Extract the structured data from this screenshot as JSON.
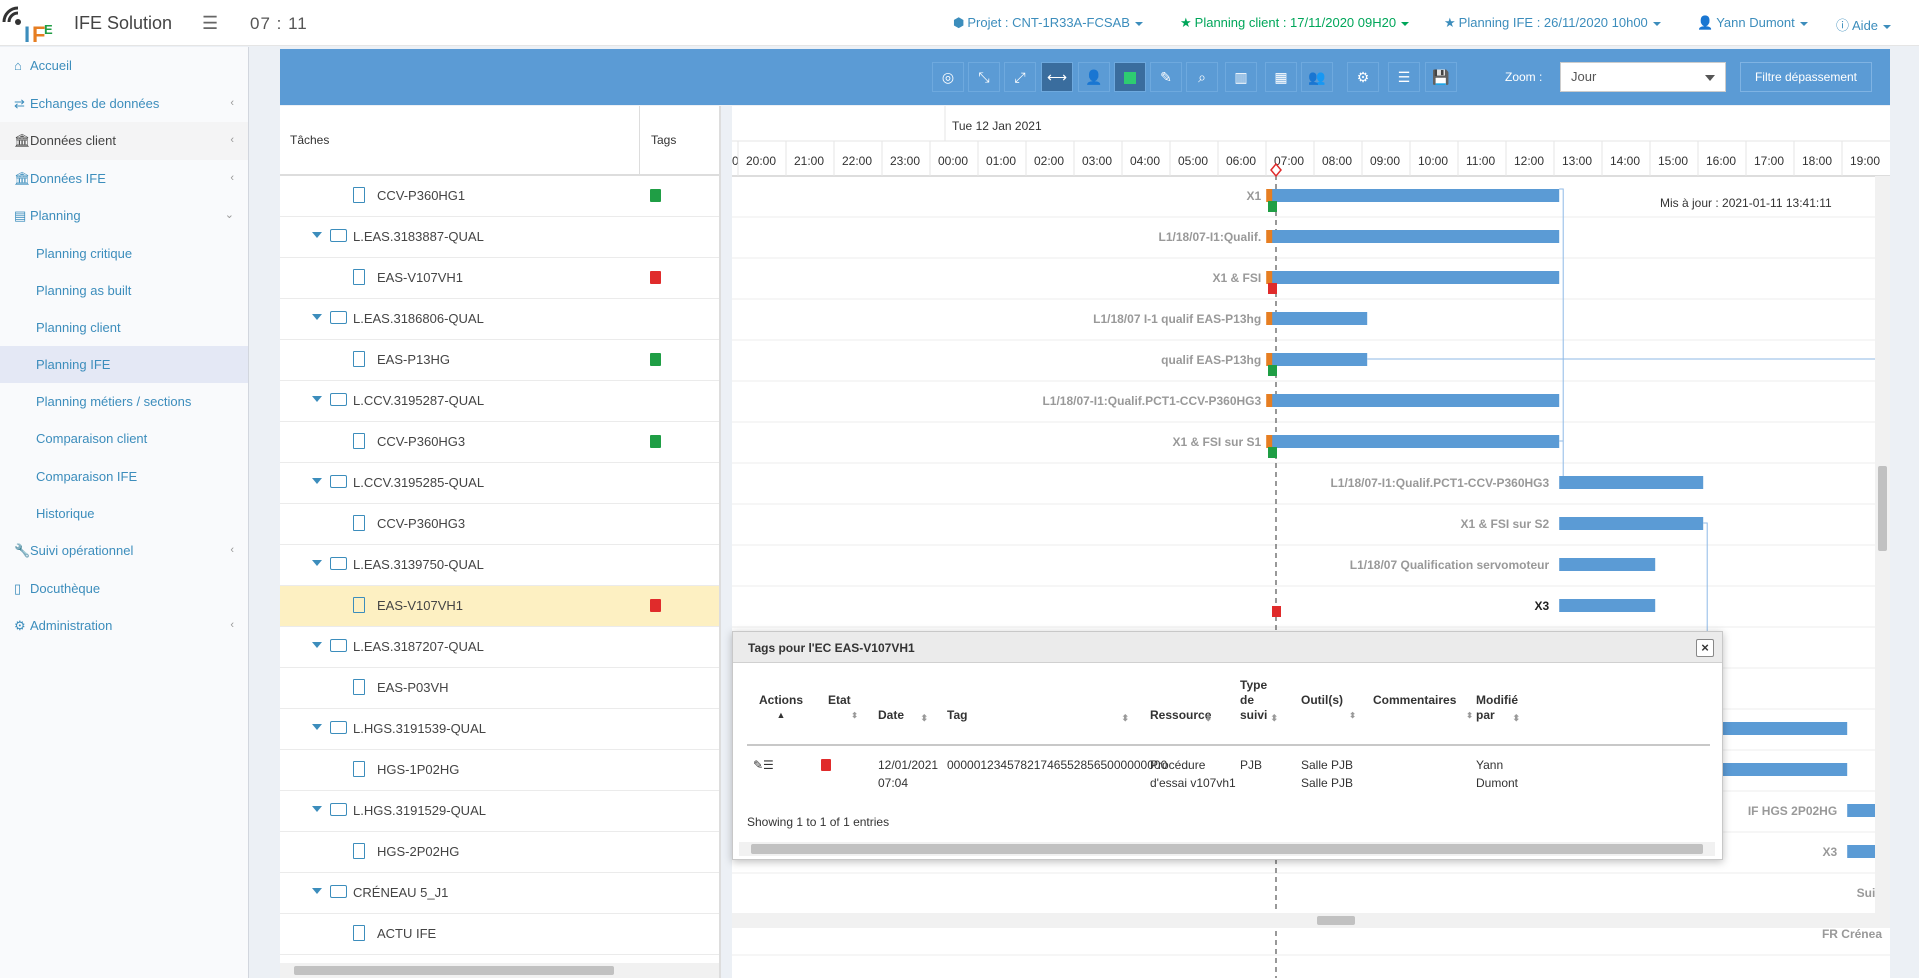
{
  "app": {
    "title": "IFE Solution",
    "clock": "07 : 11"
  },
  "topnav": {
    "projet": "Projet : CNT-1R33A-FCSAB",
    "planning_client": "Planning client : 17/11/2020 09H20",
    "planning_ife": "Planning IFE : 26/11/2020 10h00",
    "user": "Yann Dumont",
    "aide": "Aide"
  },
  "sidebar": {
    "items": [
      {
        "label": "Accueil",
        "icon": "home-icon"
      },
      {
        "label": "Echanges de données",
        "icon": "exchange-icon"
      },
      {
        "label": "Données client",
        "icon": "bank-icon"
      },
      {
        "label": "Données IFE",
        "icon": "bank-icon"
      },
      {
        "label": "Planning",
        "icon": "calendar-list-icon"
      }
    ],
    "planning_sub": [
      "Planning critique",
      "Planning as built",
      "Planning client",
      "Planning IFE",
      "Planning métiers / sections",
      "Comparaison client",
      "Comparaison IFE",
      "Historique"
    ],
    "items2": [
      {
        "label": "Suivi opérationnel",
        "icon": "wrench-icon"
      },
      {
        "label": "Docuthèque",
        "icon": "document-icon"
      },
      {
        "label": "Administration",
        "icon": "gear-icon"
      }
    ]
  },
  "toolbar": {
    "zoom_label": "Zoom :",
    "zoom_value": "Jour",
    "filtre_label": "Filtre dépassement",
    "icons": [
      "target-icon",
      "collapse-icon",
      "expand-icon",
      "fit-width-icon",
      "user-icon",
      "color-square-icon",
      "marker-icon",
      "search-icon",
      "bar-chart-icon",
      "calendar-x-icon",
      "group-icon",
      "cogs-icon",
      "list-icon",
      "save-icon"
    ]
  },
  "grid": {
    "headers": {
      "tasks": "Tâches",
      "tags": "Tags"
    },
    "rows": [
      {
        "label": "CCV-P360HG1",
        "type": "file",
        "tag": "green"
      },
      {
        "label": "L.EAS.3183887-QUAL",
        "type": "folder",
        "tag": ""
      },
      {
        "label": "EAS-V107VH1",
        "type": "file",
        "tag": "red"
      },
      {
        "label": "L.EAS.3186806-QUAL",
        "type": "folder",
        "tag": ""
      },
      {
        "label": "EAS-P13HG",
        "type": "file",
        "tag": "green"
      },
      {
        "label": "L.CCV.3195287-QUAL",
        "type": "folder",
        "tag": ""
      },
      {
        "label": "CCV-P360HG3",
        "type": "file",
        "tag": "green"
      },
      {
        "label": "L.CCV.3195285-QUAL",
        "type": "folder",
        "tag": ""
      },
      {
        "label": "CCV-P360HG3",
        "type": "file",
        "tag": ""
      },
      {
        "label": "L.EAS.3139750-QUAL",
        "type": "folder",
        "tag": ""
      },
      {
        "label": "EAS-V107VH1",
        "type": "file",
        "tag": "red",
        "selected": true
      },
      {
        "label": "L.EAS.3187207-QUAL",
        "type": "folder",
        "tag": ""
      },
      {
        "label": "EAS-P03VH",
        "type": "file",
        "tag": ""
      },
      {
        "label": "L.HGS.3191539-QUAL",
        "type": "folder",
        "tag": ""
      },
      {
        "label": "HGS-1P02HG",
        "type": "file",
        "tag": ""
      },
      {
        "label": "L.HGS.3191529-QUAL",
        "type": "folder",
        "tag": ""
      },
      {
        "label": "HGS-2P02HG",
        "type": "file",
        "tag": ""
      },
      {
        "label": "CRÉNEAU 5_J1",
        "type": "folder",
        "tag": ""
      },
      {
        "label": "ACTU IFE",
        "type": "file",
        "tag": ""
      }
    ]
  },
  "gantt": {
    "date_label": "Tue 12 Jan 2021",
    "hours": [
      "0",
      "20:00",
      "21:00",
      "22:00",
      "23:00",
      "00:00",
      "01:00",
      "02:00",
      "03:00",
      "04:00",
      "05:00",
      "06:00",
      "07:00",
      "08:00",
      "09:00",
      "10:00",
      "11:00",
      "12:00",
      "13:00",
      "14:00",
      "15:00",
      "16:00",
      "17:00",
      "18:00",
      "19:00"
    ],
    "updated": "Mis à jour : 2021-01-11 13:41:11",
    "bar_labels": [
      "X1",
      "L1/18/07-I1:Qualif.",
      "X1 & FSI",
      "L1/18/07 I-1 qualif EAS-P13hg",
      "qualif EAS-P13hg",
      "L1/18/07-I1:Qualif.PCT1-CCV-P360HG3",
      "X1 & FSI sur S1",
      "L1/18/07-I1:Qualif.PCT1-CCV-P360HG3",
      "X1 & FSI sur S2",
      "L1/18/07 Qualification servomoteur",
      "X3",
      "IF HGS 2P02HG",
      "X3",
      "Suiv",
      "FR Crénea"
    ]
  },
  "dialog": {
    "title": "Tags pour l'EC EAS-V107VH1",
    "close": "×",
    "headers": {
      "actions": "Actions",
      "etat": "Etat",
      "date": "Date",
      "tag": "Tag",
      "ressource": "Ressource",
      "type_suivi": "Type de suivi",
      "outils": "Outil(s)",
      "commentaires": "Commentaires",
      "modifie_par": "Modifié par"
    },
    "row": {
      "date": "12/01/2021 07:04",
      "tag": "000001234578217465528565000000000",
      "ressource": "Procédure d'essai v107vh1",
      "type_suivi": "PJB",
      "outils": "Salle PJB Salle PJB",
      "commentaires": "",
      "modifie_par": "Yann Dumont"
    },
    "info": "Showing 1 to 1 of 1 entries"
  },
  "colors": {
    "accent": "#3c8dbc",
    "toolbar": "#5b9bd5",
    "bar": "#5b9bd5",
    "milestone": "#e67e22",
    "green": "#1f9e45",
    "red": "#e02b2b"
  }
}
